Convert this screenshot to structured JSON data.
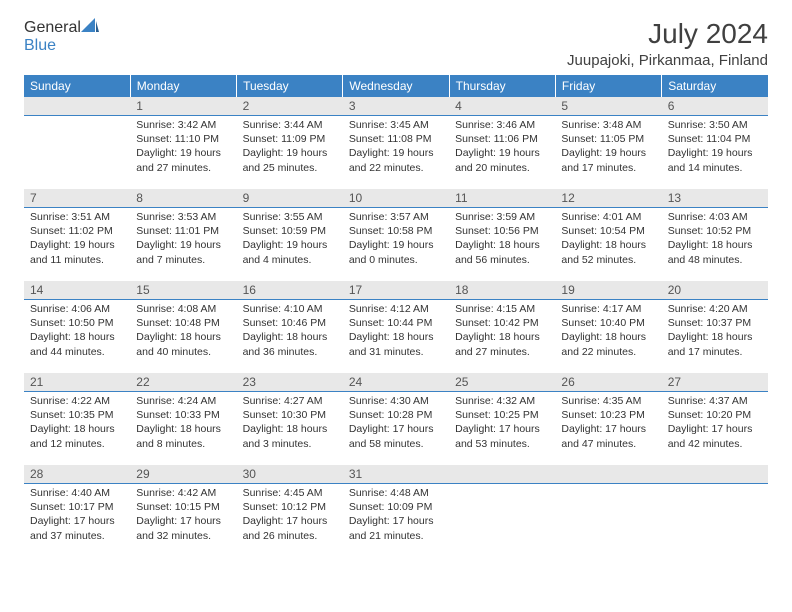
{
  "logo": {
    "general": "General",
    "blue": "Blue"
  },
  "title": "July 2024",
  "location": "Juupajoki, Pirkanmaa, Finland",
  "colors": {
    "header_bg": "#3b82c4",
    "header_text": "#ffffff",
    "daynum_bg": "#e8e8e8",
    "daynum_border": "#3b82c4",
    "body_text": "#333333",
    "logo_gray": "#585858",
    "logo_blue": "#3b82c4",
    "page_bg": "#ffffff"
  },
  "weekdays": [
    "Sunday",
    "Monday",
    "Tuesday",
    "Wednesday",
    "Thursday",
    "Friday",
    "Saturday"
  ],
  "weeks": [
    [
      null,
      {
        "n": "1",
        "sr": "Sunrise: 3:42 AM",
        "ss": "Sunset: 11:10 PM",
        "dl": "Daylight: 19 hours and 27 minutes."
      },
      {
        "n": "2",
        "sr": "Sunrise: 3:44 AM",
        "ss": "Sunset: 11:09 PM",
        "dl": "Daylight: 19 hours and 25 minutes."
      },
      {
        "n": "3",
        "sr": "Sunrise: 3:45 AM",
        "ss": "Sunset: 11:08 PM",
        "dl": "Daylight: 19 hours and 22 minutes."
      },
      {
        "n": "4",
        "sr": "Sunrise: 3:46 AM",
        "ss": "Sunset: 11:06 PM",
        "dl": "Daylight: 19 hours and 20 minutes."
      },
      {
        "n": "5",
        "sr": "Sunrise: 3:48 AM",
        "ss": "Sunset: 11:05 PM",
        "dl": "Daylight: 19 hours and 17 minutes."
      },
      {
        "n": "6",
        "sr": "Sunrise: 3:50 AM",
        "ss": "Sunset: 11:04 PM",
        "dl": "Daylight: 19 hours and 14 minutes."
      }
    ],
    [
      {
        "n": "7",
        "sr": "Sunrise: 3:51 AM",
        "ss": "Sunset: 11:02 PM",
        "dl": "Daylight: 19 hours and 11 minutes."
      },
      {
        "n": "8",
        "sr": "Sunrise: 3:53 AM",
        "ss": "Sunset: 11:01 PM",
        "dl": "Daylight: 19 hours and 7 minutes."
      },
      {
        "n": "9",
        "sr": "Sunrise: 3:55 AM",
        "ss": "Sunset: 10:59 PM",
        "dl": "Daylight: 19 hours and 4 minutes."
      },
      {
        "n": "10",
        "sr": "Sunrise: 3:57 AM",
        "ss": "Sunset: 10:58 PM",
        "dl": "Daylight: 19 hours and 0 minutes."
      },
      {
        "n": "11",
        "sr": "Sunrise: 3:59 AM",
        "ss": "Sunset: 10:56 PM",
        "dl": "Daylight: 18 hours and 56 minutes."
      },
      {
        "n": "12",
        "sr": "Sunrise: 4:01 AM",
        "ss": "Sunset: 10:54 PM",
        "dl": "Daylight: 18 hours and 52 minutes."
      },
      {
        "n": "13",
        "sr": "Sunrise: 4:03 AM",
        "ss": "Sunset: 10:52 PM",
        "dl": "Daylight: 18 hours and 48 minutes."
      }
    ],
    [
      {
        "n": "14",
        "sr": "Sunrise: 4:06 AM",
        "ss": "Sunset: 10:50 PM",
        "dl": "Daylight: 18 hours and 44 minutes."
      },
      {
        "n": "15",
        "sr": "Sunrise: 4:08 AM",
        "ss": "Sunset: 10:48 PM",
        "dl": "Daylight: 18 hours and 40 minutes."
      },
      {
        "n": "16",
        "sr": "Sunrise: 4:10 AM",
        "ss": "Sunset: 10:46 PM",
        "dl": "Daylight: 18 hours and 36 minutes."
      },
      {
        "n": "17",
        "sr": "Sunrise: 4:12 AM",
        "ss": "Sunset: 10:44 PM",
        "dl": "Daylight: 18 hours and 31 minutes."
      },
      {
        "n": "18",
        "sr": "Sunrise: 4:15 AM",
        "ss": "Sunset: 10:42 PM",
        "dl": "Daylight: 18 hours and 27 minutes."
      },
      {
        "n": "19",
        "sr": "Sunrise: 4:17 AM",
        "ss": "Sunset: 10:40 PM",
        "dl": "Daylight: 18 hours and 22 minutes."
      },
      {
        "n": "20",
        "sr": "Sunrise: 4:20 AM",
        "ss": "Sunset: 10:37 PM",
        "dl": "Daylight: 18 hours and 17 minutes."
      }
    ],
    [
      {
        "n": "21",
        "sr": "Sunrise: 4:22 AM",
        "ss": "Sunset: 10:35 PM",
        "dl": "Daylight: 18 hours and 12 minutes."
      },
      {
        "n": "22",
        "sr": "Sunrise: 4:24 AM",
        "ss": "Sunset: 10:33 PM",
        "dl": "Daylight: 18 hours and 8 minutes."
      },
      {
        "n": "23",
        "sr": "Sunrise: 4:27 AM",
        "ss": "Sunset: 10:30 PM",
        "dl": "Daylight: 18 hours and 3 minutes."
      },
      {
        "n": "24",
        "sr": "Sunrise: 4:30 AM",
        "ss": "Sunset: 10:28 PM",
        "dl": "Daylight: 17 hours and 58 minutes."
      },
      {
        "n": "25",
        "sr": "Sunrise: 4:32 AM",
        "ss": "Sunset: 10:25 PM",
        "dl": "Daylight: 17 hours and 53 minutes."
      },
      {
        "n": "26",
        "sr": "Sunrise: 4:35 AM",
        "ss": "Sunset: 10:23 PM",
        "dl": "Daylight: 17 hours and 47 minutes."
      },
      {
        "n": "27",
        "sr": "Sunrise: 4:37 AM",
        "ss": "Sunset: 10:20 PM",
        "dl": "Daylight: 17 hours and 42 minutes."
      }
    ],
    [
      {
        "n": "28",
        "sr": "Sunrise: 4:40 AM",
        "ss": "Sunset: 10:17 PM",
        "dl": "Daylight: 17 hours and 37 minutes."
      },
      {
        "n": "29",
        "sr": "Sunrise: 4:42 AM",
        "ss": "Sunset: 10:15 PM",
        "dl": "Daylight: 17 hours and 32 minutes."
      },
      {
        "n": "30",
        "sr": "Sunrise: 4:45 AM",
        "ss": "Sunset: 10:12 PM",
        "dl": "Daylight: 17 hours and 26 minutes."
      },
      {
        "n": "31",
        "sr": "Sunrise: 4:48 AM",
        "ss": "Sunset: 10:09 PM",
        "dl": "Daylight: 17 hours and 21 minutes."
      },
      null,
      null,
      null
    ]
  ]
}
